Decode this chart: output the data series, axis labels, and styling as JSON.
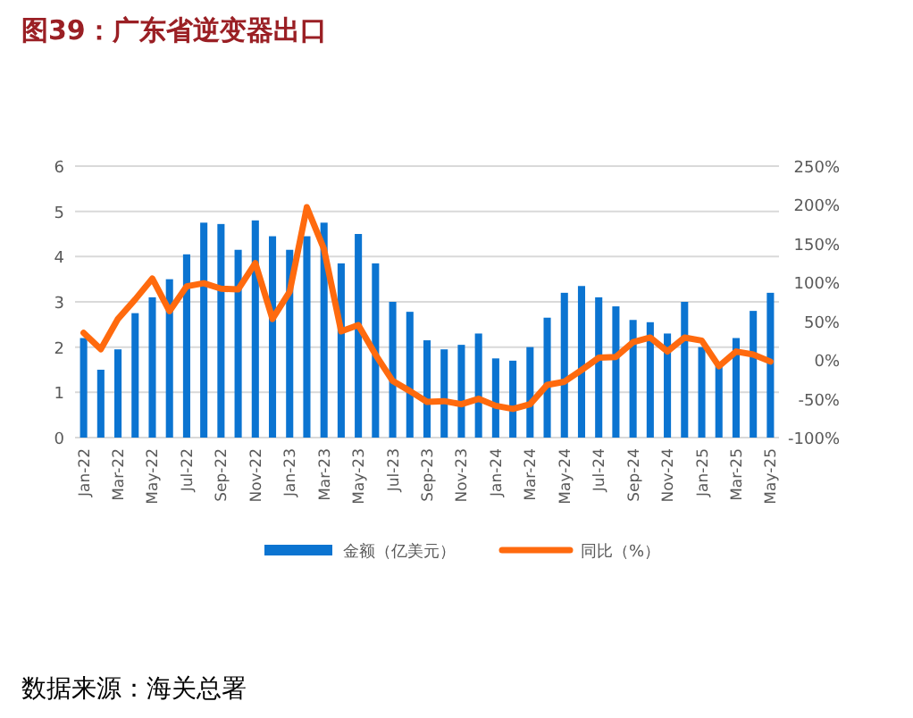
{
  "chart_data": {
    "type": "bar",
    "title": "图39：广东省逆变器出口",
    "annotations": [
      "数据来源：海关总署"
    ],
    "categories": [
      "Jan-22",
      null,
      "Mar-22",
      null,
      "May-22",
      null,
      "Jul-22",
      null,
      "Sep-22",
      null,
      "Nov-22",
      null,
      "Jan-23",
      null,
      "Mar-23",
      null,
      "May-23",
      null,
      "Jul-23",
      null,
      "Sep-23",
      null,
      "Nov-23",
      null,
      "Jan-24",
      null,
      "Mar-24",
      null,
      "May-24",
      null,
      "Jul-24",
      null,
      "Sep-24",
      null,
      "Nov-24",
      null,
      "Jan-25",
      null,
      "Mar-25",
      null,
      "May-25"
    ],
    "series": [
      {
        "name": "金额（亿美元）",
        "color": "#0b74d1",
        "values": [
          2.2,
          1.5,
          1.95,
          2.75,
          3.1,
          3.5,
          4.05,
          4.75,
          4.72,
          4.15,
          4.8,
          4.45,
          4.15,
          4.45,
          4.75,
          3.85,
          4.5,
          3.85,
          3.0,
          2.78,
          2.15,
          1.95,
          2.05,
          2.3,
          1.75,
          1.7,
          2.0,
          2.65,
          3.2,
          3.35,
          3.1,
          2.9,
          2.6,
          2.55,
          2.3,
          3.0,
          2.0,
          1.65,
          2.2,
          2.8,
          3.2
        ]
      },
      {
        "name": "同比（%）",
        "type": "line",
        "axis": "y2",
        "color": "#ff6a0e",
        "values": [
          35,
          14,
          53,
          78,
          105,
          63,
          95,
          99,
          92,
          91,
          125,
          53,
          88,
          197,
          143,
          37,
          45,
          7,
          -27,
          -40,
          -54,
          -53,
          -57,
          -50,
          -59,
          -63,
          -57,
          -32,
          -28,
          -13,
          3,
          4,
          23,
          29,
          11,
          29,
          25,
          -8,
          11,
          7,
          -2
        ]
      }
    ],
    "ylim": [
      0,
      6
    ],
    "yticks": [
      0,
      1,
      2,
      3,
      4,
      5,
      6
    ],
    "y2lim": [
      -100,
      250
    ],
    "y2ticks": [
      {
        "value": -100,
        "label": "-100%"
      },
      {
        "value": -50,
        "label": "-50%"
      },
      {
        "value": 0,
        "label": "0%"
      },
      {
        "value": 50,
        "label": "50%"
      },
      {
        "value": 100,
        "label": "100%"
      },
      {
        "value": 150,
        "label": "150%"
      },
      {
        "value": 200,
        "label": "200%"
      },
      {
        "value": 250,
        "label": "250%"
      }
    ],
    "grid": "y",
    "legend": "bottom"
  }
}
